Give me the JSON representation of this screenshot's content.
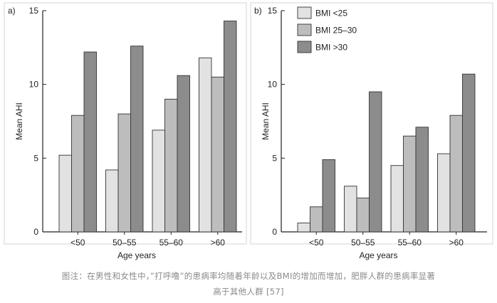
{
  "chart_data": [
    {
      "type": "bar",
      "panel_label": "a)",
      "categories": [
        "<50",
        "50–55",
        "55–60",
        ">60"
      ],
      "series": [
        {
          "name": "BMI <25",
          "values": [
            5.2,
            4.2,
            6.9,
            11.8
          ],
          "color": "#e2e2e2"
        },
        {
          "name": "BMI 25–30",
          "values": [
            7.9,
            8.0,
            9.0,
            10.5
          ],
          "color": "#bdbdbd"
        },
        {
          "name": "BMI >30",
          "values": [
            12.2,
            12.6,
            10.6,
            14.3
          ],
          "color": "#8c8c8c"
        }
      ],
      "xlabel": "Age years",
      "ylabel": "Mean AHI",
      "ylim": [
        0,
        15
      ],
      "yticks": [
        "0",
        "5",
        "10",
        "15"
      ],
      "grid": false
    },
    {
      "type": "bar",
      "panel_label": "b)",
      "categories": [
        "<50",
        "50–55",
        "55–60",
        ">60"
      ],
      "series": [
        {
          "name": "BMI <25",
          "values": [
            0.6,
            3.1,
            4.5,
            5.3
          ],
          "color": "#e2e2e2"
        },
        {
          "name": "BMI 25–30",
          "values": [
            1.7,
            2.3,
            6.5,
            7.9
          ],
          "color": "#bdbdbd"
        },
        {
          "name": "BMI >30",
          "values": [
            4.9,
            9.5,
            7.1,
            10.7
          ],
          "color": "#8c8c8c"
        }
      ],
      "xlabel": "Age years",
      "ylabel": "Mean AHI",
      "ylim": [
        0,
        15
      ],
      "yticks": [
        "0",
        "5",
        "10",
        "15"
      ],
      "grid": false,
      "legend": "top-left"
    }
  ],
  "caption": {
    "line1": "图注：在男性和女性中，”打呼噜”的患病率均随着年龄以及BMI的增加而增加，肥胖人群的患病率显著",
    "line2": "高于其他人群 [57]"
  },
  "colors": {
    "frame": "#222222",
    "bar_stroke": "#333333"
  }
}
